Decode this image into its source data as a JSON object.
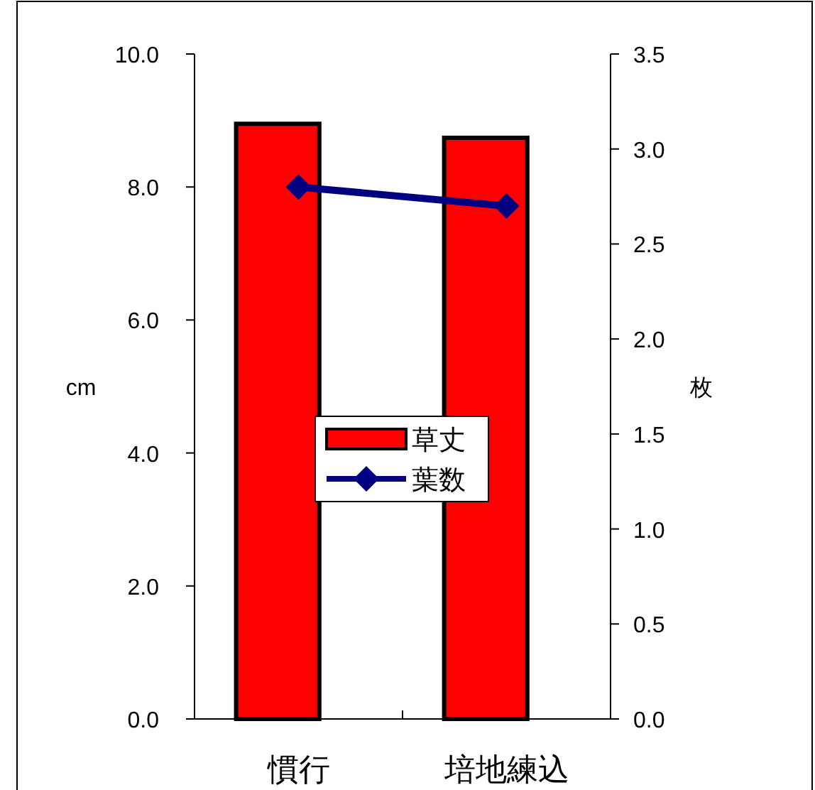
{
  "chart_data": {
    "type": "bar",
    "categories": [
      "慣行",
      "培地練込"
    ],
    "ylabel": "cm",
    "y2label": "枚",
    "ylim": [
      0,
      10
    ],
    "yticks": [
      {
        "value": 0,
        "label": "0.0"
      },
      {
        "value": 2,
        "label": "2.0"
      },
      {
        "value": 4,
        "label": "4.0"
      },
      {
        "value": 6,
        "label": "6.0"
      },
      {
        "value": 8,
        "label": "8.0"
      },
      {
        "value": 10,
        "label": "10.0"
      }
    ],
    "y2lim": [
      0,
      3.5
    ],
    "y2ticks": [
      {
        "value": 0,
        "label": "0.0"
      },
      {
        "value": 0.5,
        "label": "0.5"
      },
      {
        "value": 1,
        "label": "1.0"
      },
      {
        "value": 1.5,
        "label": "1.5"
      },
      {
        "value": 2,
        "label": "2.0"
      },
      {
        "value": 2.5,
        "label": "2.5"
      },
      {
        "value": 3,
        "label": "3.0"
      },
      {
        "value": 3.5,
        "label": "3.5"
      }
    ],
    "series": [
      {
        "name": "草丈",
        "color": "#ff0000",
        "values": [
          8.95,
          8.74
        ]
      },
      {
        "name": "葉数",
        "type": "line",
        "axis": "y2",
        "color": "#000080",
        "marker": "diamond",
        "values": [
          2.8,
          2.7
        ]
      }
    ],
    "legend": "center",
    "grid": false
  }
}
